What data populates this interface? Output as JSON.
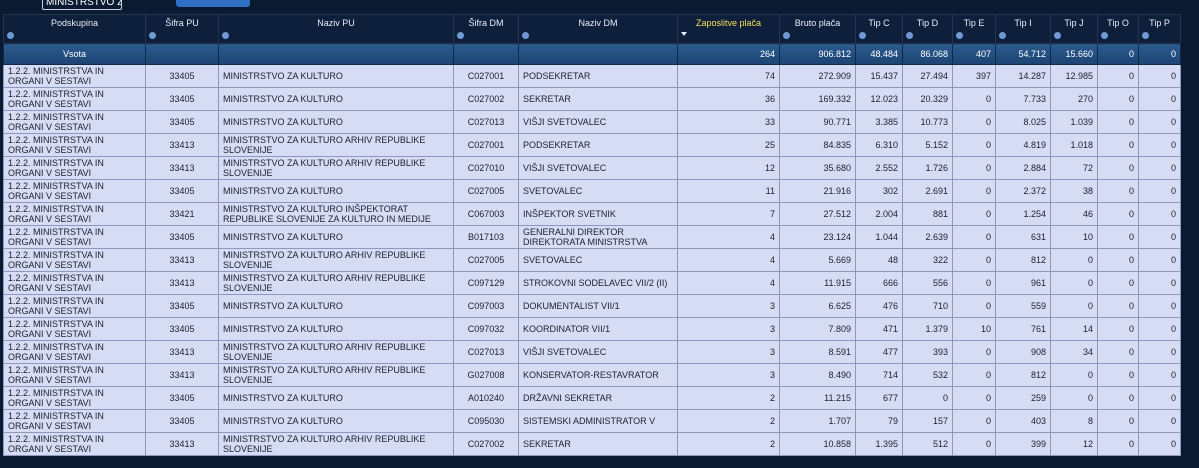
{
  "toolbar": {
    "select": "MINISTRSTVO ZA"
  },
  "table": {
    "columns": [
      "Podskupina",
      "Šifra PU",
      "Naziv PU",
      "Šifra DM",
      "Naziv DM",
      "Zaposlitve plača",
      "Bruto plača",
      "Tip C",
      "Tip D",
      "Tip E",
      "Tip I",
      "Tip J",
      "Tip O",
      "Tip P"
    ],
    "sum_row": [
      "Vsota",
      "",
      "",
      "",
      "",
      "264",
      "906.812",
      "48.484",
      "86.068",
      "407",
      "54.712",
      "15.660",
      "0",
      "0"
    ],
    "rows": [
      [
        "1.2.2. MINISTRSTVA IN ORGANI V SESTAVI",
        "33405",
        "MINISTRSTVO ZA KULTURO",
        "C027001",
        "PODSEKRETAR",
        "74",
        "272.909",
        "15.437",
        "27.494",
        "397",
        "14.287",
        "12.985",
        "0",
        "0"
      ],
      [
        "1.2.2. MINISTRSTVA IN ORGANI V SESTAVI",
        "33405",
        "MINISTRSTVO ZA KULTURO",
        "C027002",
        "SEKRETAR",
        "36",
        "169.332",
        "12.023",
        "20.329",
        "0",
        "7.733",
        "270",
        "0",
        "0"
      ],
      [
        "1.2.2. MINISTRSTVA IN ORGANI V SESTAVI",
        "33405",
        "MINISTRSTVO ZA KULTURO",
        "C027013",
        "VIŠJI SVETOVALEC",
        "33",
        "90.771",
        "3.385",
        "10.773",
        "0",
        "8.025",
        "1.039",
        "0",
        "0"
      ],
      [
        "1.2.2. MINISTRSTVA IN ORGANI V SESTAVI",
        "33413",
        "MINISTRSTVO ZA KULTURO ARHIV REPUBLIKE SLOVENIJE",
        "C027001",
        "PODSEKRETAR",
        "25",
        "84.835",
        "6.310",
        "5.152",
        "0",
        "4.819",
        "1.018",
        "0",
        "0"
      ],
      [
        "1.2.2. MINISTRSTVA IN ORGANI V SESTAVI",
        "33413",
        "MINISTRSTVO ZA KULTURO ARHIV REPUBLIKE SLOVENIJE",
        "C027010",
        "VIŠJI SVETOVALEC",
        "12",
        "35.680",
        "2.552",
        "1.726",
        "0",
        "2.884",
        "72",
        "0",
        "0"
      ],
      [
        "1.2.2. MINISTRSTVA IN ORGANI V SESTAVI",
        "33405",
        "MINISTRSTVO ZA KULTURO",
        "C027005",
        "SVETOVALEC",
        "11",
        "21.916",
        "302",
        "2.691",
        "0",
        "2.372",
        "38",
        "0",
        "0"
      ],
      [
        "1.2.2. MINISTRSTVA IN ORGANI V SESTAVI",
        "33421",
        "MINISTRSTVO ZA KULTURO INŠPEKTORAT REPUBLIKE SLOVENIJE ZA KULTURO IN MEDIJE",
        "C067003",
        "INŠPEKTOR SVETNIK",
        "7",
        "27.512",
        "2.004",
        "881",
        "0",
        "1.254",
        "46",
        "0",
        "0"
      ],
      [
        "1.2.2. MINISTRSTVA IN ORGANI V SESTAVI",
        "33405",
        "MINISTRSTVO ZA KULTURO",
        "B017103",
        "GENERALNI DIREKTOR DIREKTORATA MINISTRSTVA",
        "4",
        "23.124",
        "1.044",
        "2.639",
        "0",
        "631",
        "10",
        "0",
        "0"
      ],
      [
        "1.2.2. MINISTRSTVA IN ORGANI V SESTAVI",
        "33413",
        "MINISTRSTVO ZA KULTURO ARHIV REPUBLIKE SLOVENIJE",
        "C027005",
        "SVETOVALEC",
        "4",
        "5.669",
        "48",
        "322",
        "0",
        "812",
        "0",
        "0",
        "0"
      ],
      [
        "1.2.2. MINISTRSTVA IN ORGANI V SESTAVI",
        "33413",
        "MINISTRSTVO ZA KULTURO ARHIV REPUBLIKE SLOVENIJE",
        "C097129",
        "STROKOVNI SODELAVEC VII/2 (II)",
        "4",
        "11.915",
        "666",
        "556",
        "0",
        "961",
        "0",
        "0",
        "0"
      ],
      [
        "1.2.2. MINISTRSTVA IN ORGANI V SESTAVI",
        "33405",
        "MINISTRSTVO ZA KULTURO",
        "C097003",
        "DOKUMENTALIST VII/1",
        "3",
        "6.625",
        "476",
        "710",
        "0",
        "559",
        "0",
        "0",
        "0"
      ],
      [
        "1.2.2. MINISTRSTVA IN ORGANI V SESTAVI",
        "33405",
        "MINISTRSTVO ZA KULTURO",
        "C097032",
        "KOORDINATOR VII/1",
        "3",
        "7.809",
        "471",
        "1.379",
        "10",
        "761",
        "14",
        "0",
        "0"
      ],
      [
        "1.2.2. MINISTRSTVA IN ORGANI V SESTAVI",
        "33413",
        "MINISTRSTVO ZA KULTURO ARHIV REPUBLIKE SLOVENIJE",
        "C027013",
        "VIŠJI SVETOVALEC",
        "3",
        "8.591",
        "477",
        "393",
        "0",
        "908",
        "34",
        "0",
        "0"
      ],
      [
        "1.2.2. MINISTRSTVA IN ORGANI V SESTAVI",
        "33413",
        "MINISTRSTVO ZA KULTURO ARHIV REPUBLIKE SLOVENIJE",
        "G027008",
        "KONSERVATOR-RESTAVRATOR",
        "3",
        "8.490",
        "714",
        "532",
        "0",
        "812",
        "0",
        "0",
        "0"
      ],
      [
        "1.2.2. MINISTRSTVA IN ORGANI V SESTAVI",
        "33405",
        "MINISTRSTVO ZA KULTURO",
        "A010240",
        "DRŽAVNI SEKRETAR",
        "2",
        "11.215",
        "677",
        "0",
        "0",
        "259",
        "0",
        "0",
        "0"
      ],
      [
        "1.2.2. MINISTRSTVA IN ORGANI V SESTAVI",
        "33405",
        "MINISTRSTVO ZA KULTURO",
        "C095030",
        "SISTEMSKI ADMINISTRATOR V",
        "2",
        "1.707",
        "79",
        "157",
        "0",
        "403",
        "8",
        "0",
        "0"
      ],
      [
        "1.2.2. MINISTRSTVA IN ORGANI V SESTAVI",
        "33413",
        "MINISTRSTVO ZA KULTURO ARHIV REPUBLIKE SLOVENIJE",
        "C027002",
        "SEKRETAR",
        "2",
        "10.858",
        "1.395",
        "512",
        "0",
        "399",
        "12",
        "0",
        "0"
      ]
    ]
  }
}
